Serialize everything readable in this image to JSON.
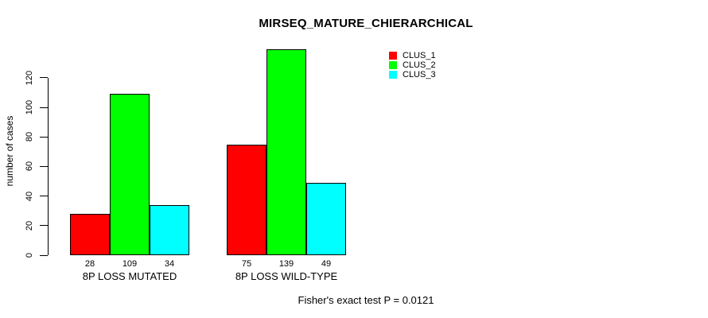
{
  "chart_data": {
    "type": "bar",
    "title": "MIRSEQ_MATURE_CHIERARCHICAL",
    "ylabel": "number of cases",
    "xlabel": "",
    "annotation": "Fisher's exact test P = 0.0121",
    "categories": [
      "8P LOSS MUTATED",
      "8P LOSS WILD-TYPE"
    ],
    "series": [
      {
        "name": "CLUS_1",
        "color": "#ff0000",
        "values": [
          28,
          75
        ]
      },
      {
        "name": "CLUS_2",
        "color": "#00ff00",
        "values": [
          109,
          139
        ]
      },
      {
        "name": "CLUS_3",
        "color": "#00ffff",
        "values": [
          34,
          49
        ]
      }
    ],
    "yticks": [
      0,
      20,
      40,
      60,
      80,
      100,
      120
    ],
    "ylim": [
      0,
      140
    ],
    "grid": false,
    "bar_value_labels_shown": true,
    "legend_position": "top-right-inside",
    "legend_entries": [
      "CLUS_1",
      "CLUS_2",
      "CLUS_3"
    ],
    "axis_color": "#000000",
    "background_color": "#ffffff"
  }
}
